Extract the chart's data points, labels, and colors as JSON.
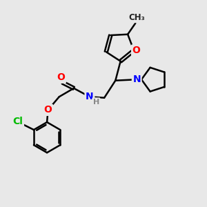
{
  "bg_color": "#e8e8e8",
  "bond_color": "#000000",
  "bond_width": 1.8,
  "atom_colors": {
    "O": "#ff0000",
    "N": "#0000ff",
    "Cl": "#00bb00",
    "C": "#000000",
    "H": "#888888"
  },
  "font_size_atom": 10,
  "fig_width": 3.0,
  "fig_height": 3.0,
  "dpi": 100
}
